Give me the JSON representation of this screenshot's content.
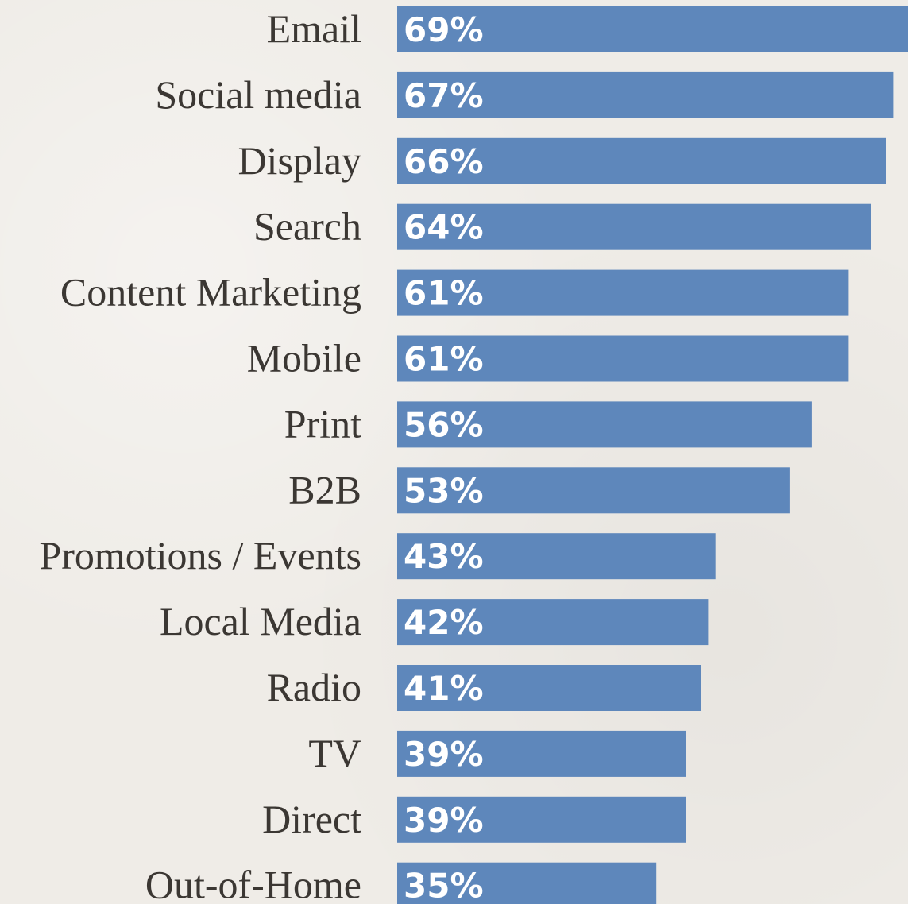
{
  "chart_data": {
    "type": "bar",
    "orientation": "horizontal",
    "categories": [
      "Email",
      "Social media",
      "Display",
      "Search",
      "Content Marketing",
      "Mobile",
      "Print",
      "B2B",
      "Promotions / Events",
      "Local Media",
      "Radio",
      "TV",
      "Direct",
      "Out-of-Home"
    ],
    "values": [
      69,
      67,
      66,
      64,
      61,
      61,
      56,
      53,
      43,
      42,
      41,
      39,
      39,
      35
    ],
    "value_labels": [
      "69%",
      "67%",
      "66%",
      "64%",
      "61%",
      "61%",
      "56%",
      "53%",
      "43%",
      "42%",
      "41%",
      "39%",
      "39%",
      "35%"
    ],
    "unit": "%",
    "title": "",
    "xlabel": "",
    "ylabel": "",
    "xlim": [
      0,
      69
    ],
    "grid": false,
    "legend": "none",
    "bar_color": "#5e87bb",
    "label_color": "#3b3733",
    "value_label_color": "#ffffff",
    "background_color": "#efece7"
  }
}
